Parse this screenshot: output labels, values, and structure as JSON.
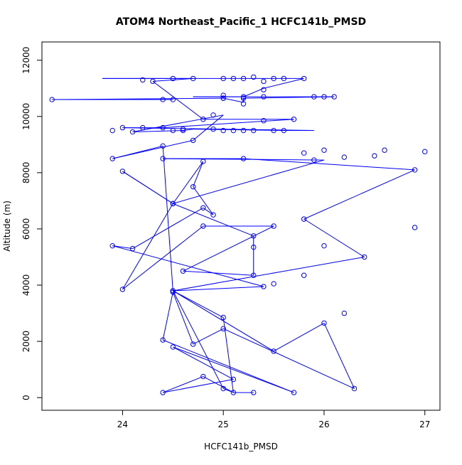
{
  "chart_data": {
    "type": "line",
    "title": "ATOM4 Northeast_Pacific_1 HCFC141b_PMSD",
    "xlabel": "HCFC141b_PMSD",
    "ylabel": "Altitude (m)",
    "xlim": [
      23.2,
      27.15
    ],
    "ylim": [
      -450,
      12650
    ],
    "xticks": [
      24,
      25,
      26,
      27
    ],
    "yticks": [
      0,
      2000,
      4000,
      6000,
      8000,
      10000,
      12000
    ],
    "grid": false,
    "series_color": "#0000ff",
    "points": [
      [
        25.1,
        180
      ],
      [
        25.3,
        180
      ],
      [
        25.0,
        320
      ],
      [
        24.4,
        180
      ],
      [
        24.8,
        750
      ],
      [
        24.5,
        1800
      ],
      [
        25.7,
        180
      ],
      [
        25.1,
        650
      ],
      [
        24.4,
        2050
      ],
      [
        24.7,
        1900
      ],
      [
        25.0,
        2450
      ],
      [
        26.3,
        320
      ],
      [
        25.5,
        1650
      ],
      [
        25.4,
        3950
      ],
      [
        24.5,
        3750
      ],
      [
        25.0,
        2850
      ],
      [
        24.5,
        3800
      ],
      [
        26.0,
        2650
      ],
      [
        26.2,
        3000
      ],
      [
        25.5,
        4050
      ],
      [
        26.4,
        5000
      ],
      [
        25.8,
        4350
      ],
      [
        26.2,
        8550
      ],
      [
        25.8,
        6350
      ],
      [
        26.9,
        8100
      ],
      [
        26.5,
        8600
      ],
      [
        27.0,
        8750
      ],
      [
        26.6,
        8800
      ],
      [
        26.0,
        8800
      ],
      [
        25.8,
        8700
      ],
      [
        25.9,
        8450
      ],
      [
        25.2,
        8500
      ],
      [
        24.4,
        8500
      ],
      [
        24.8,
        8400
      ],
      [
        24.5,
        6900
      ],
      [
        24.9,
        6500
      ],
      [
        24.7,
        7500
      ],
      [
        24.8,
        6750
      ],
      [
        24.0,
        8050
      ],
      [
        23.9,
        8500
      ],
      [
        24.1,
        9450
      ],
      [
        23.9,
        9500
      ],
      [
        24.7,
        9150
      ],
      [
        24.8,
        9900
      ],
      [
        24.4,
        10600
      ],
      [
        23.3,
        10600
      ],
      [
        24.5,
        10600
      ],
      [
        24.3,
        11250
      ],
      [
        24.2,
        11300
      ],
      [
        24.7,
        11350
      ],
      [
        25.4,
        11250
      ],
      [
        25.2,
        11350
      ],
      [
        25.6,
        11350
      ],
      [
        25.8,
        11350
      ],
      [
        25.1,
        11350
      ],
      [
        25.0,
        11350
      ],
      [
        25.0,
        10750
      ],
      [
        25.2,
        10450
      ],
      [
        25.0,
        10650
      ],
      [
        25.2,
        10650
      ],
      [
        25.2,
        10700
      ],
      [
        25.4,
        10700
      ],
      [
        25.9,
        10700
      ],
      [
        26.0,
        10700
      ],
      [
        26.1,
        10700
      ],
      [
        25.4,
        10950
      ],
      [
        25.7,
        9900
      ],
      [
        25.2,
        9500
      ],
      [
        25.5,
        9500
      ],
      [
        25.6,
        9500
      ],
      [
        25.3,
        9500
      ],
      [
        25.1,
        9500
      ],
      [
        25.0,
        9500
      ],
      [
        24.9,
        9550
      ],
      [
        24.6,
        9500
      ],
      [
        24.6,
        9550
      ],
      [
        24.5,
        9500
      ],
      [
        24.2,
        9600
      ],
      [
        24.0,
        9600
      ],
      [
        24.4,
        9600
      ],
      [
        25.4,
        9850
      ],
      [
        24.9,
        10050
      ],
      [
        24.4,
        8950
      ],
      [
        24.1,
        5300
      ],
      [
        23.9,
        5400
      ],
      [
        24.5,
        3800
      ],
      [
        24.8,
        6100
      ],
      [
        25.5,
        6100
      ],
      [
        24.6,
        4500
      ],
      [
        25.3,
        5750
      ],
      [
        25.3,
        5350
      ],
      [
        25.3,
        4350
      ],
      [
        24.5,
        6900
      ],
      [
        24.0,
        3850
      ],
      [
        25.3,
        11400
      ],
      [
        25.5,
        11350
      ],
      [
        26.0,
        5400
      ],
      [
        26.9,
        6050
      ],
      [
        24.5,
        11350
      ],
      [
        25.0,
        10650
      ]
    ],
    "path_order": [
      [
        25.3,
        180
      ],
      [
        25.1,
        180
      ],
      [
        24.8,
        750
      ],
      [
        24.4,
        180
      ],
      [
        25.1,
        650
      ],
      [
        24.5,
        1800
      ],
      [
        25.7,
        180
      ],
      [
        24.4,
        2050
      ],
      [
        24.5,
        3750
      ],
      [
        24.7,
        1900
      ],
      [
        25.0,
        2450
      ],
      [
        26.3,
        320
      ],
      [
        26.0,
        2650
      ],
      [
        25.5,
        1650
      ],
      [
        24.5,
        3800
      ],
      [
        25.4,
        3950
      ],
      [
        23.9,
        5400
      ],
      [
        24.1,
        5300
      ],
      [
        24.8,
        6750
      ],
      [
        24.9,
        6500
      ],
      [
        24.7,
        7500
      ],
      [
        24.8,
        8400
      ],
      [
        24.5,
        6900
      ],
      [
        24.0,
        8050
      ],
      [
        24.5,
        6900
      ],
      [
        25.3,
        5750
      ],
      [
        25.3,
        5350
      ],
      [
        25.3,
        4350
      ],
      [
        24.6,
        4500
      ],
      [
        25.5,
        6100
      ],
      [
        24.8,
        6100
      ],
      [
        24.0,
        3850
      ],
      [
        24.5,
        6900
      ],
      [
        26.0,
        8450
      ],
      [
        24.4,
        8500
      ],
      [
        25.2,
        8500
      ],
      [
        26.9,
        8100
      ],
      [
        25.8,
        6350
      ],
      [
        26.4,
        5000
      ],
      [
        24.5,
        3800
      ],
      [
        25.0,
        2850
      ],
      [
        25.1,
        180
      ],
      [
        25.0,
        320
      ],
      [
        24.5,
        3800
      ],
      [
        24.4,
        8950
      ],
      [
        23.9,
        8500
      ],
      [
        24.7,
        9150
      ],
      [
        25.0,
        10050
      ],
      [
        24.1,
        9450
      ],
      [
        24.6,
        9500
      ],
      [
        24.7,
        9550
      ],
      [
        25.6,
        9500
      ],
      [
        25.9,
        9500
      ],
      [
        24.0,
        9600
      ],
      [
        24.4,
        9600
      ],
      [
        25.7,
        9900
      ],
      [
        24.8,
        9900
      ],
      [
        24.3,
        11250
      ],
      [
        24.7,
        11350
      ],
      [
        23.8,
        11350
      ],
      [
        24.5,
        11350
      ],
      [
        25.1,
        11350
      ],
      [
        25.6,
        11350
      ],
      [
        25.8,
        11350
      ],
      [
        25.4,
        11000
      ],
      [
        25.2,
        10700
      ],
      [
        24.7,
        10700
      ],
      [
        26.0,
        10700
      ],
      [
        26.1,
        10700
      ],
      [
        25.2,
        10650
      ],
      [
        25.2,
        10500
      ],
      [
        25.0,
        10650
      ],
      [
        23.3,
        10600
      ],
      [
        24.5,
        10600
      ],
      [
        24.2,
        10600
      ],
      [
        23.3,
        10600
      ]
    ]
  }
}
